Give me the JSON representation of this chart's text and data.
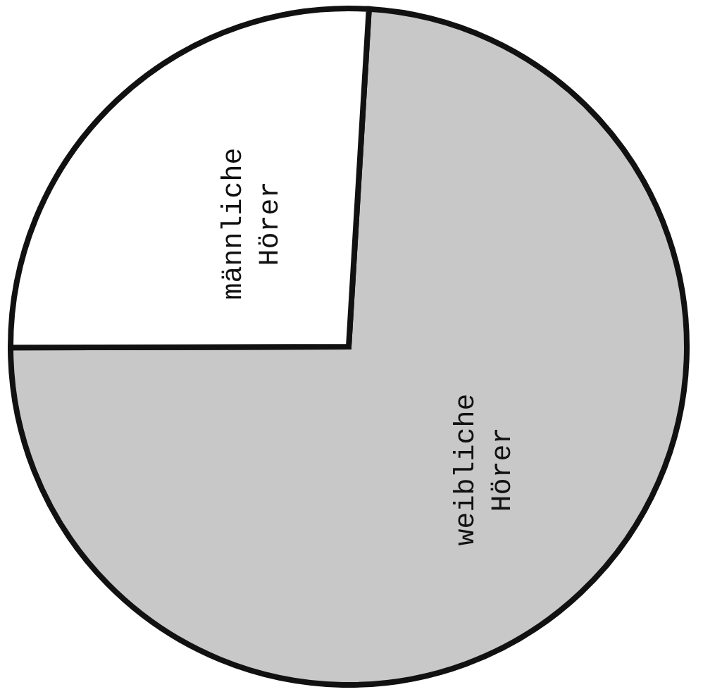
{
  "chart_data": {
    "type": "pie",
    "categories": [
      "weibliche Hörer",
      "männliche Hörer"
    ],
    "values": [
      74,
      26
    ],
    "colors": [
      "#c8c8c8",
      "#ffffff"
    ]
  }
}
